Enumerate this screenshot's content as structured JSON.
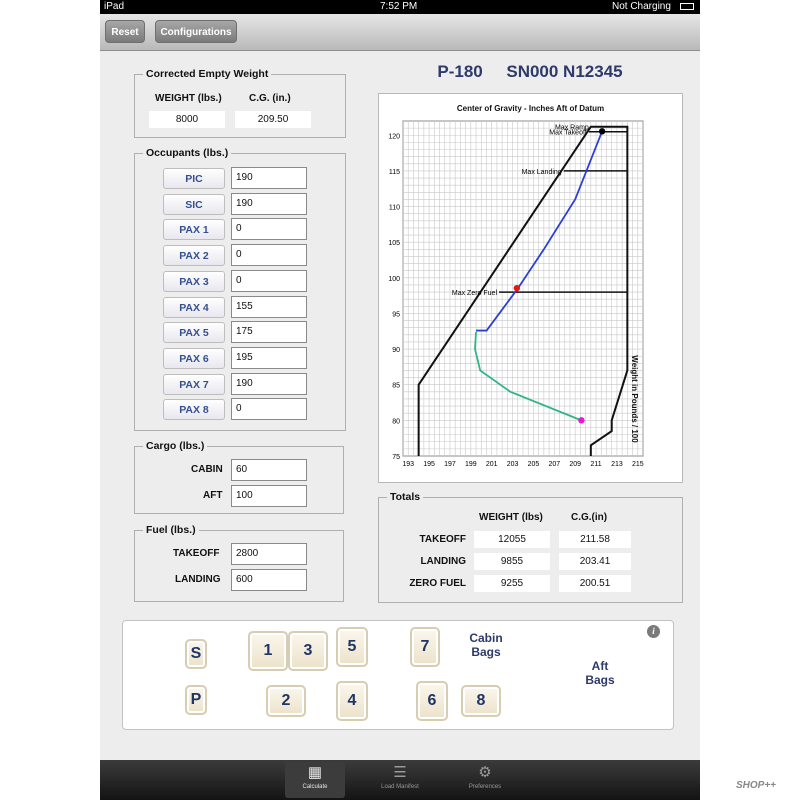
{
  "statusbar": {
    "device": "iPad",
    "time": "7:52 PM",
    "battery": "Not Charging"
  },
  "toolbar": {
    "reset_label": "Reset",
    "configurations_label": "Configurations"
  },
  "header": {
    "model": "P-180",
    "serial": "SN000 N12345"
  },
  "empty_weight": {
    "title": "Corrected  Empty Weight",
    "weight_label": "WEIGHT (lbs.)",
    "cg_label": "C.G. (in.)",
    "weight": "8000",
    "cg": "209.50"
  },
  "occupants": {
    "title": "Occupants (lbs.)",
    "rows": [
      {
        "label": "PIC",
        "value": "190"
      },
      {
        "label": "SIC",
        "value": "190"
      },
      {
        "label": "PAX 1",
        "value": "0"
      },
      {
        "label": "PAX 2",
        "value": "0"
      },
      {
        "label": "PAX 3",
        "value": "0"
      },
      {
        "label": "PAX 4",
        "value": "155"
      },
      {
        "label": "PAX 5",
        "value": "175"
      },
      {
        "label": "PAX 6",
        "value": "195"
      },
      {
        "label": "PAX 7",
        "value": "190"
      },
      {
        "label": "PAX 8",
        "value": "0"
      }
    ]
  },
  "cargo": {
    "title": "Cargo (lbs.)",
    "cabin_label": "CABIN",
    "cabin": "60",
    "aft_label": "AFT",
    "aft": "100"
  },
  "fuel": {
    "title": "Fuel (lbs.)",
    "takeoff_label": "TAKEOFF",
    "takeoff": "2800",
    "landing_label": "LANDING",
    "landing": "600"
  },
  "totals": {
    "title": "Totals",
    "weight_header": "WEIGHT (lbs)",
    "cg_header": "C.G.(in)",
    "rows": [
      {
        "label": "TAKEOFF",
        "weight": "12055",
        "cg": "211.58"
      },
      {
        "label": "LANDING",
        "weight": "9855",
        "cg": "203.41"
      },
      {
        "label": "ZERO FUEL",
        "weight": "9255",
        "cg": "200.51"
      }
    ]
  },
  "chart_data": {
    "type": "line",
    "title": "Center of Gravity - Inches Aft of Datum",
    "xlabel": "",
    "ylabel": "Weight in Pounds / 100",
    "xlim": [
      192.5,
      215.5
    ],
    "ylim": [
      75,
      122
    ],
    "x_ticks": [
      193,
      195,
      197,
      199,
      201,
      203,
      205,
      207,
      209,
      211,
      213,
      215
    ],
    "y_ticks": [
      75,
      80,
      85,
      90,
      95,
      100,
      105,
      110,
      115,
      120
    ],
    "grid": true,
    "envelope": [
      [
        194,
        75
      ],
      [
        194,
        85
      ],
      [
        210.5,
        121.2
      ],
      [
        214,
        121.2
      ],
      [
        214,
        87
      ],
      [
        212.5,
        80
      ],
      [
        212.5,
        78.5
      ],
      [
        210.5,
        76.5
      ],
      [
        210.5,
        75
      ]
    ],
    "limit_lines": [
      {
        "label": "Max Ramp",
        "weight": 121.2,
        "cg_from": 210.5,
        "cg_to": 214
      },
      {
        "label": "Max Takeoff",
        "weight": 120.5,
        "cg_from": 210.3,
        "cg_to": 214
      },
      {
        "label": "Max Landing",
        "weight": 115,
        "cg_from": 207.9,
        "cg_to": 214
      },
      {
        "label": "Max Zero Fuel",
        "weight": 98,
        "cg_from": 201.7,
        "cg_to": 214
      }
    ],
    "series": [
      {
        "color": "#2b3fd6",
        "x": [
          211.58,
          209,
          206,
          203.5,
          200.51,
          199.5
        ],
        "y": [
          120.55,
          111,
          104,
          98.5,
          92.6,
          92.6
        ]
      },
      {
        "color": "#2eb58a",
        "x": [
          199.5,
          199.4,
          199.9,
          202.8,
          209.6
        ],
        "y": [
          92.4,
          90,
          87,
          84,
          80
        ]
      }
    ],
    "points": [
      {
        "x": 211.58,
        "y": 120.55,
        "color": "#000000"
      },
      {
        "x": 203.41,
        "y": 98.55,
        "color": "#e01818"
      },
      {
        "x": 209.6,
        "y": 80,
        "color": "#e81ad3"
      }
    ]
  },
  "bags": {
    "cabin_label": "Cabin\nBags",
    "aft_label": "Aft\nBags",
    "seats": [
      "S",
      "P",
      "1",
      "2",
      "3",
      "4",
      "5",
      "6",
      "7",
      "8"
    ]
  },
  "tabbar": {
    "tabs": [
      {
        "label": "Calculate",
        "icon": "calculator-icon"
      },
      {
        "label": "Load Manifest",
        "icon": "list-icon"
      },
      {
        "label": "Preferences",
        "icon": "gear-icon"
      }
    ]
  },
  "watermark": "SHOP++"
}
